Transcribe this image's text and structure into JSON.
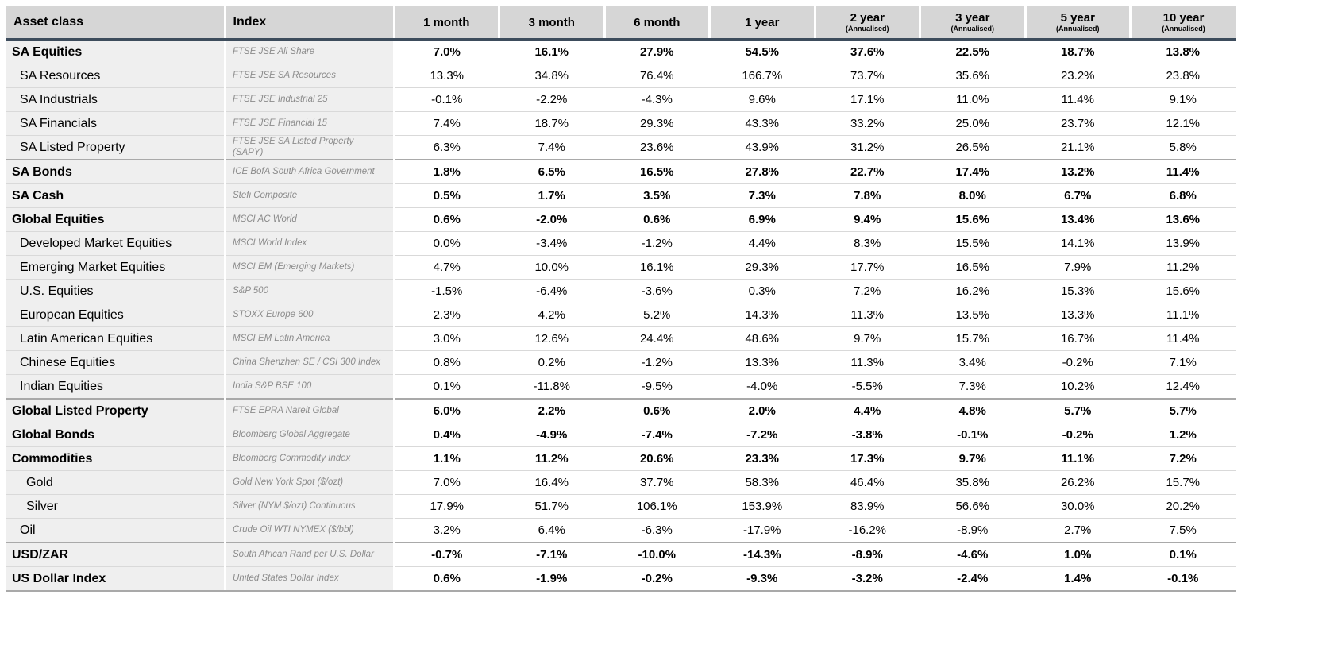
{
  "colors": {
    "header_background": "#d6d6d6",
    "label_column_background": "#efefef",
    "header_rule": "#3d4c5c",
    "row_divider": "#d9d9d9",
    "section_divider": "#a9a9a9",
    "index_text": "#8c8c8c"
  },
  "chart_data": {
    "type": "table",
    "columns": [
      {
        "label": "Asset class"
      },
      {
        "label": "Index"
      },
      {
        "label": "1 month"
      },
      {
        "label": "3 month"
      },
      {
        "label": "6 month"
      },
      {
        "label": "1 year"
      },
      {
        "label": "2 year",
        "sublabel": "(Annualised)"
      },
      {
        "label": "3 year",
        "sublabel": "(Annualised)"
      },
      {
        "label": "5 year",
        "sublabel": "(Annualised)"
      },
      {
        "label": "10 year",
        "sublabel": "(Annualised)"
      }
    ],
    "rows": [
      {
        "asset_class": "SA Equities",
        "index": "FTSE JSE All Share",
        "bold": true,
        "indent": 0,
        "section_start": false,
        "values": [
          "7.0%",
          "16.1%",
          "27.9%",
          "54.5%",
          "37.6%",
          "22.5%",
          "18.7%",
          "13.8%"
        ]
      },
      {
        "asset_class": "SA Resources",
        "index": "FTSE JSE SA Resources",
        "bold": false,
        "indent": 1,
        "section_start": false,
        "values": [
          "13.3%",
          "34.8%",
          "76.4%",
          "166.7%",
          "73.7%",
          "35.6%",
          "23.2%",
          "23.8%"
        ]
      },
      {
        "asset_class": "SA Industrials",
        "index": "FTSE JSE Industrial 25",
        "bold": false,
        "indent": 1,
        "section_start": false,
        "values": [
          "-0.1%",
          "-2.2%",
          "-4.3%",
          "9.6%",
          "17.1%",
          "11.0%",
          "11.4%",
          "9.1%"
        ]
      },
      {
        "asset_class": "SA Financials",
        "index": "FTSE JSE Financial 15",
        "bold": false,
        "indent": 1,
        "section_start": false,
        "values": [
          "7.4%",
          "18.7%",
          "29.3%",
          "43.3%",
          "33.2%",
          "25.0%",
          "23.7%",
          "12.1%"
        ]
      },
      {
        "asset_class": "SA Listed Property",
        "index": "FTSE JSE SA Listed Property\n(SAPY)",
        "bold": false,
        "indent": 1,
        "section_start": false,
        "values": [
          "6.3%",
          "7.4%",
          "23.6%",
          "43.9%",
          "31.2%",
          "26.5%",
          "21.1%",
          "5.8%"
        ]
      },
      {
        "asset_class": "SA Bonds",
        "index": "ICE BofA South Africa Government",
        "bold": true,
        "indent": 0,
        "section_start": true,
        "values": [
          "1.8%",
          "6.5%",
          "16.5%",
          "27.8%",
          "22.7%",
          "17.4%",
          "13.2%",
          "11.4%"
        ]
      },
      {
        "asset_class": "SA Cash",
        "index": "Stefi Composite",
        "bold": true,
        "indent": 0,
        "section_start": false,
        "values": [
          "0.5%",
          "1.7%",
          "3.5%",
          "7.3%",
          "7.8%",
          "8.0%",
          "6.7%",
          "6.8%"
        ]
      },
      {
        "asset_class": "Global Equities",
        "index": "MSCI AC World",
        "bold": true,
        "indent": 0,
        "section_start": false,
        "values": [
          "0.6%",
          "-2.0%",
          "0.6%",
          "6.9%",
          "9.4%",
          "15.6%",
          "13.4%",
          "13.6%"
        ]
      },
      {
        "asset_class": "Developed Market Equities",
        "index": "MSCI World Index",
        "bold": false,
        "indent": 1,
        "section_start": false,
        "values": [
          "0.0%",
          "-3.4%",
          "-1.2%",
          "4.4%",
          "8.3%",
          "15.5%",
          "14.1%",
          "13.9%"
        ]
      },
      {
        "asset_class": "Emerging Market Equities",
        "index": "MSCI EM (Emerging Markets)",
        "bold": false,
        "indent": 1,
        "section_start": false,
        "values": [
          "4.7%",
          "10.0%",
          "16.1%",
          "29.3%",
          "17.7%",
          "16.5%",
          "7.9%",
          "11.2%"
        ]
      },
      {
        "asset_class": "U.S. Equities",
        "index": "S&P 500",
        "bold": false,
        "indent": 1,
        "section_start": false,
        "values": [
          "-1.5%",
          "-6.4%",
          "-3.6%",
          "0.3%",
          "7.2%",
          "16.2%",
          "15.3%",
          "15.6%"
        ]
      },
      {
        "asset_class": "European Equities",
        "index": "STOXX Europe 600",
        "bold": false,
        "indent": 1,
        "section_start": false,
        "values": [
          "2.3%",
          "4.2%",
          "5.2%",
          "14.3%",
          "11.3%",
          "13.5%",
          "13.3%",
          "11.1%"
        ]
      },
      {
        "asset_class": "Latin American Equities",
        "index": "MSCI EM Latin America",
        "bold": false,
        "indent": 1,
        "section_start": false,
        "values": [
          "3.0%",
          "12.6%",
          "24.4%",
          "48.6%",
          "9.7%",
          "15.7%",
          "16.7%",
          "11.4%"
        ]
      },
      {
        "asset_class": "Chinese Equities",
        "index": "China Shenzhen SE / CSI 300 Index",
        "bold": false,
        "indent": 1,
        "section_start": false,
        "values": [
          "0.8%",
          "0.2%",
          "-1.2%",
          "13.3%",
          "11.3%",
          "3.4%",
          "-0.2%",
          "7.1%"
        ]
      },
      {
        "asset_class": "Indian Equities",
        "index": "India S&P BSE 100",
        "bold": false,
        "indent": 1,
        "section_start": false,
        "values": [
          "0.1%",
          "-11.8%",
          "-9.5%",
          "-4.0%",
          "-5.5%",
          "7.3%",
          "10.2%",
          "12.4%"
        ]
      },
      {
        "asset_class": "Global Listed Property",
        "index": "FTSE EPRA Nareit Global",
        "bold": true,
        "indent": 0,
        "section_start": true,
        "values": [
          "6.0%",
          "2.2%",
          "0.6%",
          "2.0%",
          "4.4%",
          "4.8%",
          "5.7%",
          "5.7%"
        ]
      },
      {
        "asset_class": "Global Bonds",
        "index": "Bloomberg Global Aggregate",
        "bold": true,
        "indent": 0,
        "section_start": false,
        "values": [
          "0.4%",
          "-4.9%",
          "-7.4%",
          "-7.2%",
          "-3.8%",
          "-0.1%",
          "-0.2%",
          "1.2%"
        ]
      },
      {
        "asset_class": "Commodities",
        "index": "Bloomberg Commodity Index",
        "bold": true,
        "indent": 0,
        "section_start": false,
        "values": [
          "1.1%",
          "11.2%",
          "20.6%",
          "23.3%",
          "17.3%",
          "9.7%",
          "11.1%",
          "7.2%"
        ]
      },
      {
        "asset_class": "Gold",
        "index": "Gold New York Spot ($/ozt)",
        "bold": false,
        "indent": 2,
        "section_start": false,
        "values": [
          "7.0%",
          "16.4%",
          "37.7%",
          "58.3%",
          "46.4%",
          "35.8%",
          "26.2%",
          "15.7%"
        ]
      },
      {
        "asset_class": "Silver",
        "index": "Silver (NYM $/ozt) Continuous",
        "bold": false,
        "indent": 2,
        "section_start": false,
        "values": [
          "17.9%",
          "51.7%",
          "106.1%",
          "153.9%",
          "83.9%",
          "56.6%",
          "30.0%",
          "20.2%"
        ]
      },
      {
        "asset_class": "Oil",
        "index": "Crude Oil WTI NYMEX ($/bbl)",
        "bold": false,
        "indent": 1,
        "section_start": false,
        "values": [
          "3.2%",
          "6.4%",
          "-6.3%",
          "-17.9%",
          "-16.2%",
          "-8.9%",
          "2.7%",
          "7.5%"
        ]
      },
      {
        "asset_class": "USD/ZAR",
        "index": "South African Rand per U.S. Dollar",
        "bold": true,
        "indent": 0,
        "section_start": true,
        "values": [
          "-0.7%",
          "-7.1%",
          "-10.0%",
          "-14.3%",
          "-8.9%",
          "-4.6%",
          "1.0%",
          "0.1%"
        ]
      },
      {
        "asset_class": "US Dollar Index",
        "index": "United States Dollar Index",
        "bold": true,
        "indent": 0,
        "section_start": false,
        "values": [
          "0.6%",
          "-1.9%",
          "-0.2%",
          "-9.3%",
          "-3.2%",
          "-2.4%",
          "1.4%",
          "-0.1%"
        ]
      }
    ]
  }
}
